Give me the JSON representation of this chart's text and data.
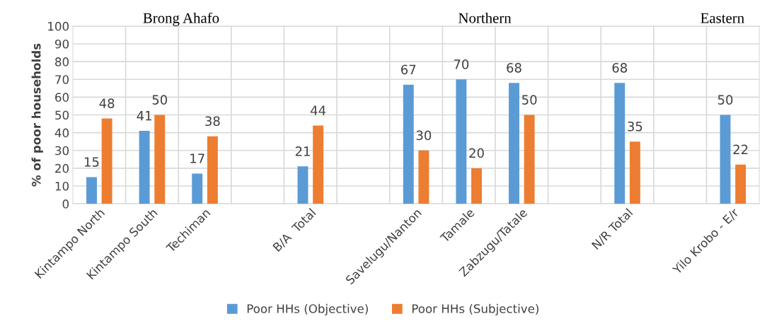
{
  "chart_data": {
    "type": "bar",
    "ylabel": "% of poor households",
    "categories": [
      "Kintampo North",
      "Kintampo South",
      "Techiman",
      null,
      "B/A  Total",
      null,
      "Savelugu/Nanton",
      "Tamale",
      "Zabzugu/Tatale",
      null,
      "N/R Total",
      null,
      "Yilo Krobo - E/r"
    ],
    "series": [
      {
        "name": "Poor HHs (Objective)",
        "color": "#5b9bd5",
        "values": [
          15,
          41,
          17,
          null,
          21,
          null,
          67,
          70,
          68,
          null,
          68,
          null,
          50
        ]
      },
      {
        "name": "Poor HHs (Subjective)",
        "color": "#ed7d31",
        "values": [
          48,
          50,
          38,
          null,
          44,
          null,
          30,
          20,
          50,
          null,
          35,
          null,
          22
        ]
      }
    ],
    "ylim": [
      0,
      100
    ],
    "yticks": [
      0,
      10,
      20,
      30,
      40,
      50,
      60,
      70,
      80,
      90,
      100
    ],
    "grid": true,
    "legend": "bottom",
    "data_labels": true,
    "annotations": [
      "Brong Ahafo",
      "Northern",
      "Eastern"
    ]
  }
}
